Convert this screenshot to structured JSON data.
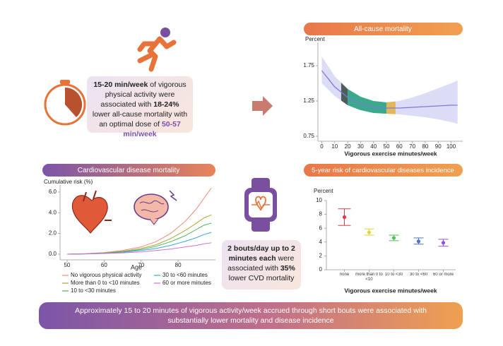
{
  "top_box": [
    "15-20 min/week",
    " of vigorous physical activity were associated with ",
    "18-24%",
    " lower all-cause mortality with an optimal dose of ",
    "50-57 min/week"
  ],
  "middle_box": [
    "2 bouts/day up to 2 minutes each",
    " were associated with ",
    "35%",
    " lower CVD mortality"
  ],
  "banner": "Approximately 15 to 20 minutes of vigorous activity/week accrued through short bouts were associated with substantially lower mortality and disease incidence",
  "chart_data": [
    {
      "type": "line",
      "title": "All-cause mortality",
      "ylabel": "Percent",
      "xlabel": "Vigorous exercise minutes/week",
      "x": [
        0,
        10,
        20,
        30,
        40,
        50,
        60,
        70,
        80,
        90,
        100,
        105
      ],
      "values": [
        1.68,
        1.45,
        1.3,
        1.21,
        1.16,
        1.15,
        1.15,
        1.16,
        1.17,
        1.18,
        1.19,
        1.19
      ],
      "lower": [
        1.5,
        1.32,
        1.19,
        1.12,
        1.08,
        1.07,
        1.06,
        1.04,
        1.02,
        0.99,
        0.95,
        0.93
      ],
      "upper": [
        1.88,
        1.6,
        1.42,
        1.31,
        1.25,
        1.23,
        1.25,
        1.3,
        1.36,
        1.43,
        1.5,
        1.54
      ],
      "color": "#7b7bd6",
      "band_color": "#dcdcf6",
      "highlights": [
        {
          "from": 15,
          "to": 20,
          "color": "#4d5d58"
        },
        {
          "from": 20,
          "to": 50,
          "color": "#3aa98d"
        },
        {
          "from": 50,
          "to": 57,
          "color": "#e2b75c"
        }
      ],
      "xlim": [
        -3,
        109
      ],
      "ylim": [
        0.68,
        2.08
      ],
      "xticks": [
        0,
        10,
        20,
        30,
        40,
        50,
        60,
        70,
        80,
        90,
        100
      ],
      "yticks": [
        0.75,
        1.25,
        1.75
      ]
    },
    {
      "type": "line",
      "title": "Cardiovascular disease mortality",
      "ylabel": "Cumulative risk (%)",
      "xlabel": "Age",
      "x": [
        50,
        55,
        60,
        65,
        70,
        74,
        78,
        82,
        85,
        87,
        89
      ],
      "series": [
        {
          "name": "No vigorous physical activity",
          "color": "#f08a7a",
          "values": [
            0,
            0.05,
            0.15,
            0.35,
            0.7,
            1.2,
            2.0,
            3.2,
            4.4,
            5.4,
            6.4
          ]
        },
        {
          "name": "More than 0 to <10 minutes",
          "color": "#a6a83a",
          "values": [
            0,
            0.04,
            0.12,
            0.28,
            0.55,
            0.9,
            1.5,
            2.3,
            3.0,
            3.5,
            3.8
          ]
        },
        {
          "name": "10 to <30 minutes",
          "color": "#4cb35a",
          "values": [
            0,
            0.03,
            0.1,
            0.22,
            0.45,
            0.75,
            1.2,
            1.8,
            2.4,
            2.8,
            3.0
          ]
        },
        {
          "name": "30 to <60 minutes",
          "color": "#3aa6de",
          "values": [
            0,
            0.02,
            0.08,
            0.18,
            0.35,
            0.55,
            0.85,
            1.25,
            1.6,
            1.9,
            2.1
          ]
        },
        {
          "name": "60 or more minutes",
          "color": "#d470d4",
          "values": [
            0,
            0.02,
            0.06,
            0.12,
            0.22,
            0.35,
            0.5,
            0.7,
            0.85,
            1.0,
            1.1
          ]
        }
      ],
      "xlim": [
        48.1,
        90.1
      ],
      "ylim": [
        -0.55,
        6.68
      ],
      "xticks": [
        50,
        60,
        70,
        80
      ],
      "yticks": [
        {
          "value": 0,
          "label": "0.0"
        },
        {
          "value": 2,
          "label": "2.0"
        },
        {
          "value": 4,
          "label": "4.0"
        },
        {
          "value": 6,
          "label": "6.0"
        }
      ]
    },
    {
      "type": "errorbar",
      "title": "5-year risk of cardiovascular diseases incidence",
      "ylabel": "Percent",
      "xlabel": "Vigorous exercise minutes/week",
      "categories": [
        "none",
        "more than 0 to <10",
        "10 to <30",
        "30 to <60",
        "60 or more"
      ],
      "values": [
        7.6,
        5.4,
        4.6,
        4.1,
        3.9
      ],
      "lower": [
        6.4,
        5.0,
        4.2,
        3.7,
        3.4
      ],
      "upper": [
        8.8,
        5.9,
        5.0,
        4.6,
        4.4
      ],
      "colors": [
        "#e8374b",
        "#e6d23a",
        "#52c25a",
        "#4a6fd0",
        "#9a4fd0"
      ],
      "ylim": [
        0,
        10
      ],
      "yticks": [
        0,
        2,
        4,
        6,
        8,
        10
      ]
    }
  ]
}
